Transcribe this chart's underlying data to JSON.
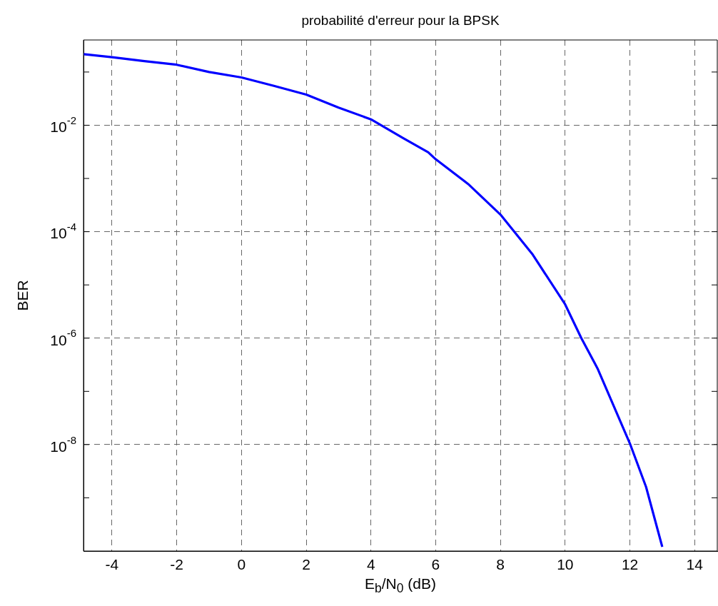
{
  "chart_data": {
    "type": "line",
    "title": "probabilité d'erreur pour la BPSK",
    "xlabel": "E$_{b}$/N$_{0}$ (dB)",
    "ylabel": "BER",
    "x": [
      -4.88,
      -4,
      -3,
      -2,
      -1,
      0,
      1,
      2,
      3,
      4,
      5,
      5.77,
      6,
      7,
      8,
      9,
      10,
      10.5,
      11,
      12,
      12.5,
      13
    ],
    "series": [
      {
        "color": "#0000ff",
        "values": [
          0.217,
          0.19,
          0.16,
          0.137,
          0.1,
          0.079,
          0.055,
          0.0376,
          0.0215,
          0.0129,
          0.0057,
          0.0031,
          0.0023,
          0.00079,
          0.00021,
          3.7e-05,
          4.3e-06,
          1e-06,
          2.7e-07,
          1.05e-08,
          1.6e-09,
          1.2e-10
        ]
      }
    ],
    "xlim": [
      -4.88,
      14.7
    ],
    "xticks": [
      -4,
      -2,
      0,
      2,
      4,
      6,
      8,
      10,
      12,
      14
    ],
    "ylim": [
      1e-10,
      0.4
    ],
    "log": "y",
    "yticks": [
      {
        "value": 1e-09,
        "label": null
      },
      {
        "value": 1e-08,
        "label": "10$^{-8}$"
      },
      {
        "value": 1e-07,
        "label": null
      },
      {
        "value": 1e-06,
        "label": "10$^{-6}$"
      },
      {
        "value": 1e-05,
        "label": null
      },
      {
        "value": 0.0001,
        "label": "10$^{-4}$"
      },
      {
        "value": 0.001,
        "label": null
      },
      {
        "value": 0.01,
        "label": "10$^{-2}$"
      },
      {
        "value": 0.1,
        "label": null
      }
    ],
    "grid": true,
    "line_style": "solid",
    "marker": "none"
  }
}
